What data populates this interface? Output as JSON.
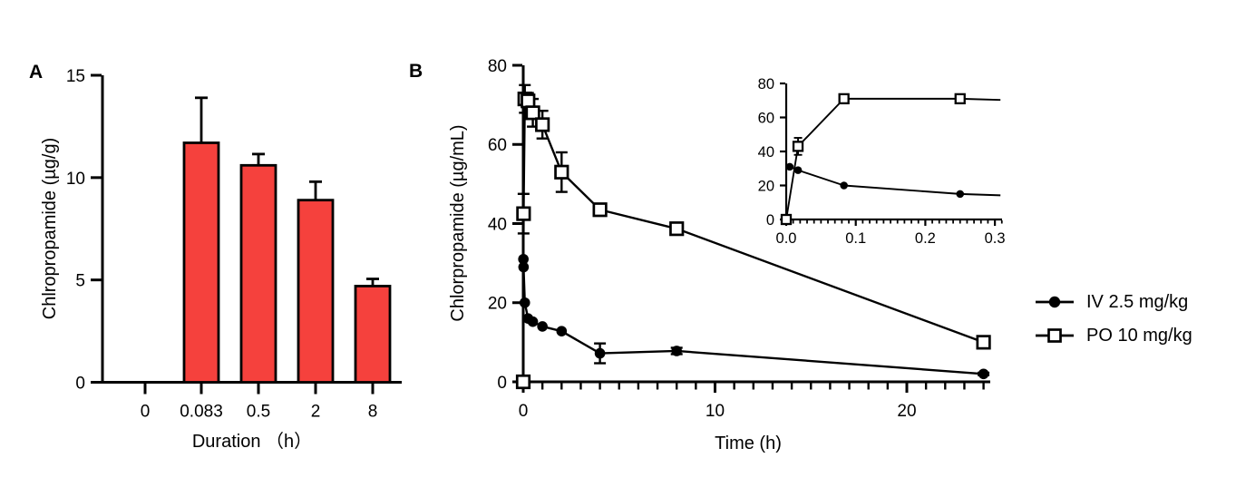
{
  "figure": {
    "panel_a_label": "A",
    "panel_b_label": "B",
    "background_color": "#FFFFFF",
    "axis_color": "#000000"
  },
  "chart_data": [
    {
      "type": "bar",
      "panel": "A",
      "title": "",
      "xlabel": "Duration （h）",
      "ylabel": "Chlropropamide (µg/g)",
      "categories": [
        "0",
        "0.083",
        "0.5",
        "2",
        "8"
      ],
      "values": [
        0,
        11.7,
        10.6,
        8.9,
        4.7
      ],
      "errors_upper": [
        0,
        2.2,
        0.55,
        0.9,
        0.35
      ],
      "ylim": [
        0,
        15
      ],
      "yticks": [
        0,
        5,
        10,
        15
      ],
      "bar_color": "#F5413D",
      "grid": false
    },
    {
      "type": "line",
      "panel": "B",
      "title": "",
      "xlabel": "Time (h)",
      "ylabel": "Chlorpropamide (µg/mL)",
      "xlim": [
        0,
        24.4
      ],
      "ylim": [
        0,
        80
      ],
      "xticks": [
        0,
        10,
        20
      ],
      "xtick_labels": [
        "0",
        "10",
        "20"
      ],
      "x_minor_tick_step": 1,
      "yticks": [
        0,
        20,
        40,
        60,
        80
      ],
      "grid": false,
      "legend_position": "right-outside",
      "series": [
        {
          "name": "IV 2.5 mg/kg",
          "marker": "filled-circle",
          "color": "#000000",
          "points": [
            {
              "x": 0.008,
              "y": 31
            },
            {
              "x": 0.017,
              "y": 29
            },
            {
              "x": 0.083,
              "y": 20
            },
            {
              "x": 0.25,
              "y": 16
            },
            {
              "x": 0.5,
              "y": 15.2
            },
            {
              "x": 1,
              "y": 14
            },
            {
              "x": 2,
              "y": 12.8
            },
            {
              "x": 4,
              "y": 7.2,
              "err": 2.5
            },
            {
              "x": 8,
              "y": 7.8,
              "err": 0.8
            },
            {
              "x": 24,
              "y": 2,
              "err": 0.3
            }
          ]
        },
        {
          "name": "PO 10 mg/kg",
          "marker": "open-square",
          "color": "#000000",
          "points": [
            {
              "x": 0,
              "y": 0
            },
            {
              "x": 0.017,
              "y": 42.5,
              "err": 5
            },
            {
              "x": 0.083,
              "y": 71.5,
              "err": 3.5
            },
            {
              "x": 0.25,
              "y": 71,
              "err": 2
            },
            {
              "x": 0.5,
              "y": 68,
              "err": 3.5
            },
            {
              "x": 1,
              "y": 65,
              "err": 3.5
            },
            {
              "x": 2,
              "y": 53,
              "err": 5
            },
            {
              "x": 4,
              "y": 43.5,
              "err": 1
            },
            {
              "x": 8,
              "y": 38.7,
              "err": 1
            },
            {
              "x": 24,
              "y": 10,
              "err": 1
            }
          ]
        }
      ],
      "inset": {
        "xlim": [
          0,
          0.31
        ],
        "ylim": [
          0,
          80
        ],
        "xticks": [
          0,
          0.1,
          0.2,
          0.3
        ],
        "xtick_labels": [
          "0.0",
          "0.1",
          "0.2",
          "0.3"
        ],
        "x_minor_tick_step": 0.01,
        "yticks": [
          0,
          20,
          40,
          60,
          80
        ],
        "series": [
          {
            "name": "IV 2.5 mg/kg",
            "marker": "filled-circle",
            "points": [
              {
                "x": 0.005,
                "y": 31
              },
              {
                "x": 0.017,
                "y": 29
              },
              {
                "x": 0.083,
                "y": 20
              },
              {
                "x": 0.25,
                "y": 15
              }
            ],
            "extend": {
              "x": 0.308,
              "y": 14.2
            }
          },
          {
            "name": "PO 10 mg/kg",
            "marker": "open-square",
            "points": [
              {
                "x": 0,
                "y": 0
              },
              {
                "x": 0.017,
                "y": 43,
                "err": 5
              },
              {
                "x": 0.083,
                "y": 71,
                "err": 2
              },
              {
                "x": 0.25,
                "y": 71
              }
            ],
            "extend": {
              "x": 0.308,
              "y": 70.3
            }
          }
        ]
      }
    }
  ]
}
